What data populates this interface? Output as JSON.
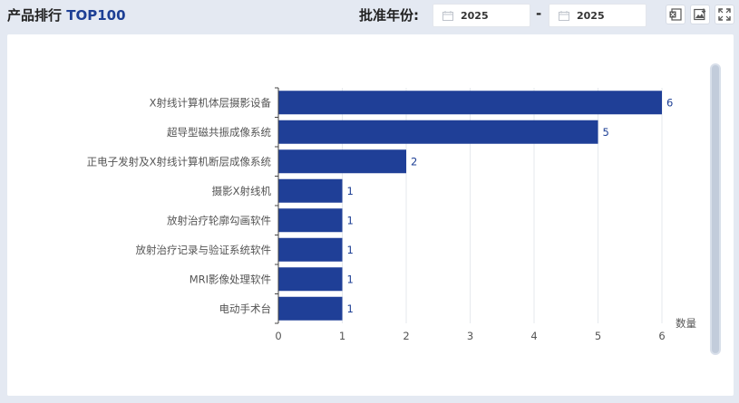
{
  "header": {
    "title_prefix": "产品排行",
    "title_accent": "TOP100",
    "year_label": "批准年份:",
    "date_from": "2025",
    "date_to": "2025",
    "separator": "-"
  },
  "toolbar": {
    "icons": [
      "excel-export-icon",
      "image-download-icon",
      "fullscreen-icon"
    ]
  },
  "colors": {
    "bar": "#1f3f97",
    "accent": "#1d3f95",
    "background": "#e4e9f2"
  },
  "chart_data": {
    "type": "bar",
    "orientation": "horizontal",
    "categories": [
      "X射线计算机体层摄影设备",
      "超导型磁共振成像系统",
      "正电子发射及X射线计算机断层成像系统",
      "摄影X射线机",
      "放射治疗轮廓勾画软件",
      "放射治疗记录与验证系统软件",
      "MRI影像处理软件",
      "电动手术台"
    ],
    "values": [
      6,
      5,
      2,
      1,
      1,
      1,
      1,
      1
    ],
    "xlabel": "数量",
    "ylabel": "",
    "xlim": [
      0,
      6
    ],
    "xticks": [
      0,
      1,
      2,
      3,
      4,
      5,
      6
    ],
    "grid": true
  }
}
